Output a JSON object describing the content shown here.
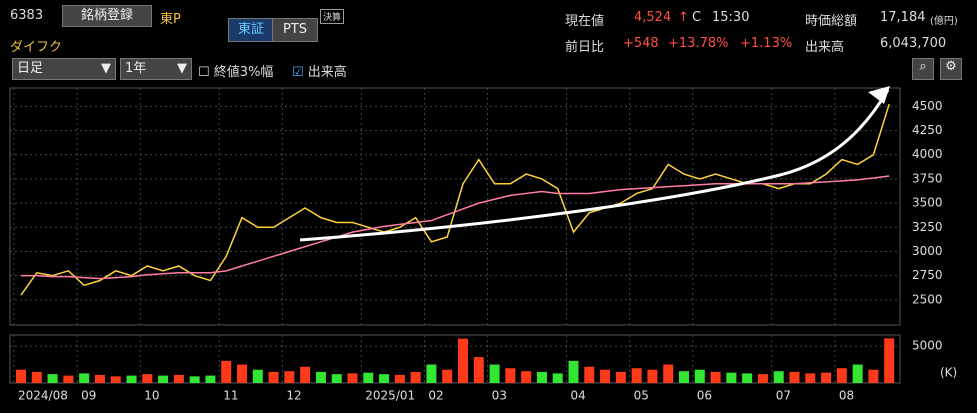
{
  "header": {
    "code": "6383",
    "register": "銘柄登録",
    "market": "東P",
    "name": "ダイフク",
    "tabs": [
      "東証",
      "PTS"
    ],
    "badge": "決算",
    "price_label": "現在値",
    "price": "4,524",
    "arrow": "↑",
    "price_flag": "C",
    "time": "15:30",
    "cap_label": "時価総額",
    "cap": "17,184",
    "cap_unit": "(億円)",
    "change_label": "前日比",
    "change": "+548",
    "change_pct": "+13.78%",
    "change_pct2": "+1.13%",
    "volume_label": "出来高",
    "volume": "6,043,700"
  },
  "controls": {
    "period": "日足",
    "range": "1年",
    "close_band": "終値3%幅",
    "show_volume": "出来高"
  },
  "chart_data": {
    "type": "stock",
    "x": [
      0,
      1,
      2,
      3,
      4,
      5,
      6,
      7,
      8,
      9,
      10,
      11,
      12,
      13,
      14,
      15,
      16,
      17,
      18,
      19,
      20,
      21,
      22,
      23,
      24,
      25,
      26,
      27,
      28,
      29,
      30,
      31,
      32,
      33,
      34,
      35,
      36,
      37,
      38,
      39,
      40,
      41,
      42,
      43,
      44,
      45,
      46,
      47,
      48,
      49,
      50,
      51,
      52,
      53,
      54,
      55
    ],
    "xlim": [
      0,
      56
    ],
    "xticks": [
      {
        "value": 0,
        "label": "2024/08"
      },
      {
        "value": 4,
        "label": "09"
      },
      {
        "value": 8,
        "label": "10"
      },
      {
        "value": 13,
        "label": "11"
      },
      {
        "value": 17,
        "label": "12"
      },
      {
        "value": 22,
        "label": "2025/01"
      },
      {
        "value": 26,
        "label": "02"
      },
      {
        "value": 30,
        "label": "03"
      },
      {
        "value": 35,
        "label": "04"
      },
      {
        "value": 39,
        "label": "05"
      },
      {
        "value": 43,
        "label": "06"
      },
      {
        "value": 48,
        "label": "07"
      },
      {
        "value": 52,
        "label": "08"
      }
    ],
    "ylim": [
      2240,
      4690
    ],
    "yticks": [
      2500,
      2750,
      3000,
      3250,
      3500,
      3750,
      4000,
      4250,
      4500
    ],
    "grid": true,
    "series": [
      {
        "color": "#ffd23c",
        "values": [
          2550,
          2780,
          2750,
          2800,
          2650,
          2700,
          2800,
          2750,
          2850,
          2800,
          2850,
          2750,
          2700,
          2950,
          3350,
          3250,
          3250,
          3350,
          3450,
          3350,
          3300,
          3300,
          3250,
          3200,
          3250,
          3350,
          3100,
          3150,
          3700,
          3950,
          3700,
          3700,
          3800,
          3750,
          3650,
          3200,
          3400,
          3450,
          3500,
          3600,
          3650,
          3900,
          3800,
          3750,
          3800,
          3750,
          3700,
          3700,
          3650,
          3700,
          3700,
          3800,
          3950,
          3900,
          4000,
          4524
        ]
      },
      {
        "color": "#ff7fa0",
        "values": [
          2750,
          2750,
          2740,
          2740,
          2730,
          2720,
          2730,
          2740,
          2760,
          2770,
          2780,
          2780,
          2780,
          2800,
          2850,
          2900,
          2950,
          3000,
          3050,
          3100,
          3150,
          3200,
          3230,
          3260,
          3280,
          3300,
          3320,
          3380,
          3440,
          3500,
          3540,
          3580,
          3600,
          3620,
          3600,
          3600,
          3600,
          3620,
          3640,
          3650,
          3660,
          3670,
          3680,
          3690,
          3700,
          3700,
          3700,
          3700,
          3700,
          3700,
          3710,
          3720,
          3730,
          3740,
          3760,
          3780
        ]
      }
    ],
    "volume": {
      "values": [
        1800,
        1500,
        1200,
        1000,
        1300,
        1100,
        900,
        1000,
        1200,
        1000,
        1100,
        900,
        1000,
        3000,
        2500,
        1800,
        1500,
        1600,
        2200,
        1500,
        1200,
        1300,
        1400,
        1200,
        1100,
        1500,
        2500,
        1800,
        6000,
        3500,
        2500,
        2000,
        1600,
        1500,
        1300,
        3000,
        2200,
        1800,
        1500,
        2000,
        1800,
        2500,
        1600,
        1800,
        1500,
        1400,
        1300,
        1200,
        1600,
        1500,
        1300,
        1400,
        2000,
        2500,
        1800,
        6044
      ],
      "ylim": [
        0,
        6500
      ],
      "yticks": [
        5000
      ],
      "unit": "(K)",
      "up_color": "#ff3a1a",
      "down_color": "#33e633"
    }
  }
}
